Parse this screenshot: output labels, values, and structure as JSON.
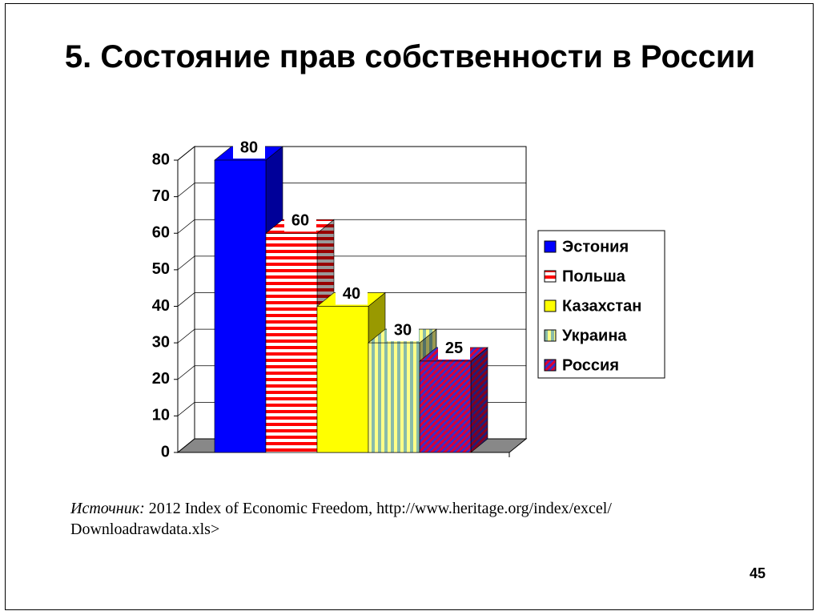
{
  "chart_data": {
    "type": "bar3d",
    "title": "5. Состояние прав собственности в России",
    "series": [
      {
        "name": "Эстония",
        "color": "#0000ff",
        "color2": "#0000ff",
        "pattern": "solid",
        "values": [
          80
        ]
      },
      {
        "name": "Польша",
        "color": "#ff0000",
        "color2": "#ffffff",
        "pattern": "horizontal",
        "values": [
          60
        ]
      },
      {
        "name": "Казахстан",
        "color": "#ffff00",
        "color2": "#ffff00",
        "pattern": "solid",
        "values": [
          40
        ]
      },
      {
        "name": "Украина",
        "color": "#88bbaa",
        "color2": "#ffff88",
        "pattern": "vertical",
        "values": [
          30
        ]
      },
      {
        "name": "Россия",
        "color": "#dd0033",
        "color2": "#3333cc",
        "pattern": "diagonal",
        "values": [
          25
        ]
      }
    ],
    "ylim": [
      0,
      80
    ],
    "yticks": [
      0,
      10,
      20,
      30,
      40,
      50,
      60,
      70,
      80
    ],
    "grid": true,
    "legend": "right"
  },
  "source": {
    "label": "Источник:",
    "lines": [
      "2012 Index of Economic Freedom, http://www.heritage.org/index/excel/",
      "Downloadrawdata.xls>"
    ]
  },
  "page_number": "45"
}
